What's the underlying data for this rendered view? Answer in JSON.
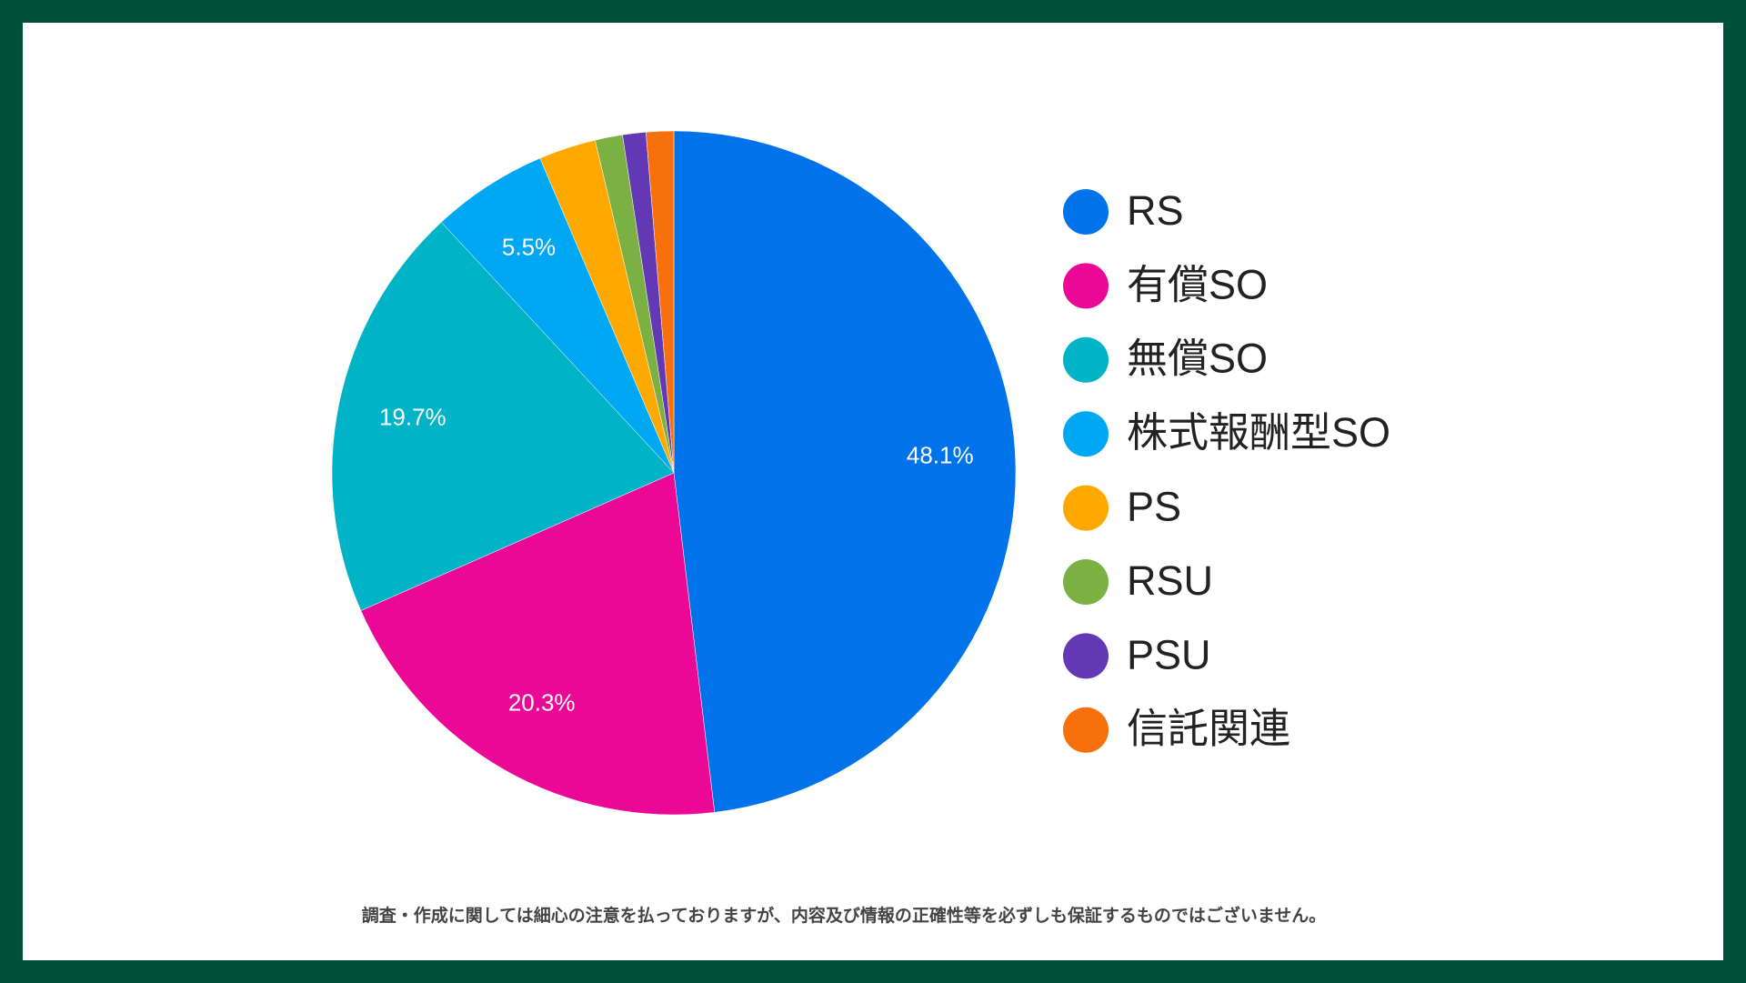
{
  "chart_data": {
    "type": "pie",
    "categories": [
      "RS",
      "有償SO",
      "無償SO",
      "株式報酬型SO",
      "PS",
      "RSU",
      "PSU",
      "信託関連"
    ],
    "values": [
      48.1,
      20.3,
      19.7,
      5.5,
      2.7,
      1.3,
      1.1,
      1.3
    ],
    "value_labels": [
      "48.1%",
      "20.3%",
      "19.7%",
      "5.5%",
      null,
      null,
      null,
      null
    ],
    "colors": [
      "#0073ea",
      "#ec0896",
      "#00b3c6",
      "#00a7f2",
      "#ffa900",
      "#7bb043",
      "#6338b5",
      "#f7700c"
    ],
    "legend": "right",
    "note": "調査・作成に関しては細心の注意を払っておりますが、内容及び情報の正確性等を必ずしも保証するものではございません。"
  }
}
